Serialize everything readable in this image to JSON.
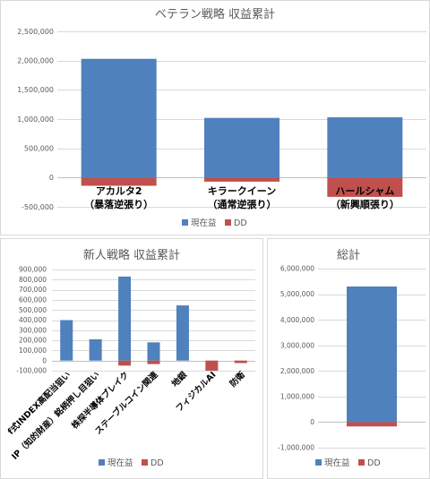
{
  "chart_data": [
    {
      "type": "bar",
      "title": "ベテラン戦略 収益累計",
      "categories": [
        "アカルタ2\n（暴落逆張り）",
        "キラークイーン\n（通常逆張り）",
        "ハールシャム\n（新興順張り）"
      ],
      "series": [
        {
          "name": "現在益",
          "color": "#4F81BD",
          "values": [
            2030000,
            1020000,
            1030000
          ]
        },
        {
          "name": "DD",
          "color": "#C0504D",
          "values": [
            -140000,
            -70000,
            -330000
          ]
        }
      ],
      "ylim": [
        -500000,
        2500000
      ],
      "yticks": [
        -500000,
        0,
        500000,
        1000000,
        1500000,
        2000000,
        2500000
      ],
      "grid": true,
      "legend": "bottom"
    },
    {
      "type": "bar",
      "title": "新人戦略 収益累計",
      "categories": [
        "f式INDEX高配当狙い",
        "IP（知的財産）銘柄押し目狙い",
        "株探半導体ブレイク",
        "ステーブルコイン関連",
        "地銀",
        "フィジカルAI",
        "防衛"
      ],
      "series": [
        {
          "name": "現在益",
          "color": "#4F81BD",
          "values": [
            400000,
            210000,
            830000,
            180000,
            545000,
            0,
            0
          ]
        },
        {
          "name": "DD",
          "color": "#C0504D",
          "values": [
            0,
            0,
            -50000,
            -35000,
            0,
            -100000,
            -25000
          ]
        }
      ],
      "ylim": [
        -100000,
        900000
      ],
      "yticks": [
        -100000,
        0,
        100000,
        200000,
        300000,
        400000,
        500000,
        600000,
        700000,
        800000,
        900000
      ],
      "grid": true,
      "legend": "bottom"
    },
    {
      "type": "bar",
      "title": "総計",
      "series": [
        {
          "name": "現在益",
          "color": "#4F81BD",
          "values": [
            5300000
          ]
        },
        {
          "name": "DD",
          "color": "#C0504D",
          "values": [
            -170000
          ]
        }
      ],
      "ylim": [
        -1000000,
        6000000
      ],
      "yticks": [
        -1000000,
        0,
        1000000,
        2000000,
        3000000,
        4000000,
        5000000,
        6000000
      ],
      "grid": true,
      "legend": "bottom"
    }
  ],
  "colors": {
    "text": "#595959",
    "grid": "#D9D9D9",
    "zero_line": "#BFBFBF",
    "negative_tick": "#FF0000",
    "category_text": "#000000"
  }
}
